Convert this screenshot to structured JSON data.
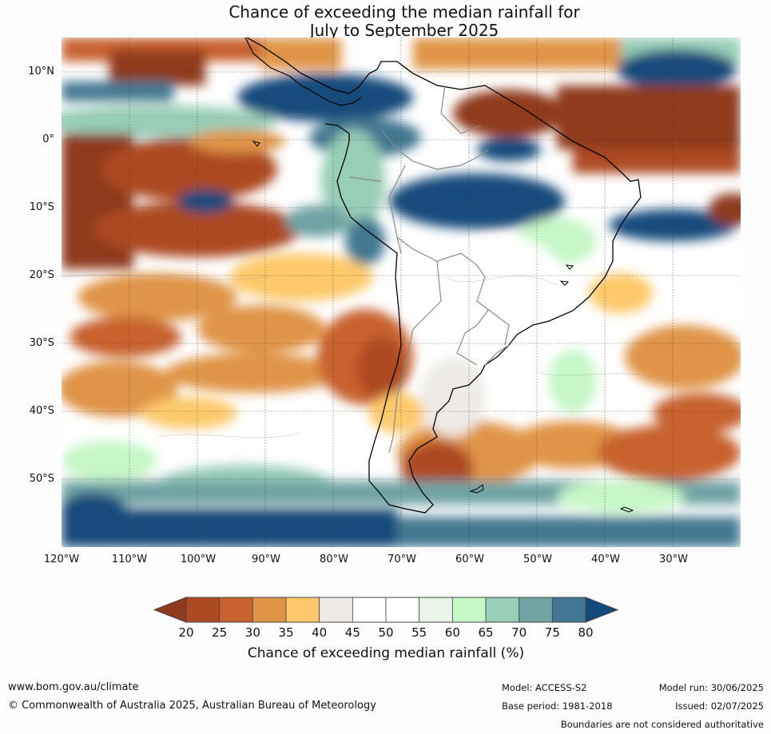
{
  "title_line1": "Chance of exceeding the median rainfall for",
  "title_line2": "July to September 2025",
  "lat_labels": [
    "10°N",
    "0°",
    "10°S",
    "20°S",
    "30°S",
    "40°S",
    "50°S"
  ],
  "lon_labels": [
    "120°W",
    "110°W",
    "100°W",
    "90°W",
    "80°W",
    "70°W",
    "60°W",
    "50°W",
    "40°W",
    "30°W"
  ],
  "colorbar": {
    "ticks": [
      "20",
      "25",
      "30",
      "35",
      "40",
      "45",
      "50",
      "55",
      "60",
      "65",
      "70",
      "75",
      "80"
    ],
    "colors": [
      "#8f3a1e",
      "#ad4a24",
      "#c8622e",
      "#e09446",
      "#fdc96a",
      "#eeebe6",
      "#ffffff",
      "#ffffff",
      "#e9f5e8",
      "#c6f7c7",
      "#98cdb7",
      "#6fa3a4",
      "#437892",
      "#124b7b"
    ],
    "label": "Chance of exceeding median rainfall (%)"
  },
  "footer": {
    "website": "www.bom.gov.au/climate",
    "copyright": "© Commonwealth of Australia 2025, Australian Bureau of Meteorology",
    "model": "Model: ACCESS-S2",
    "base_period": "Base period: 1981-2018",
    "model_run": "Model run: 30/06/2025",
    "issued": "Issued: 02/07/2025",
    "disclaimer": "Boundaries are not considered authoritative"
  }
}
